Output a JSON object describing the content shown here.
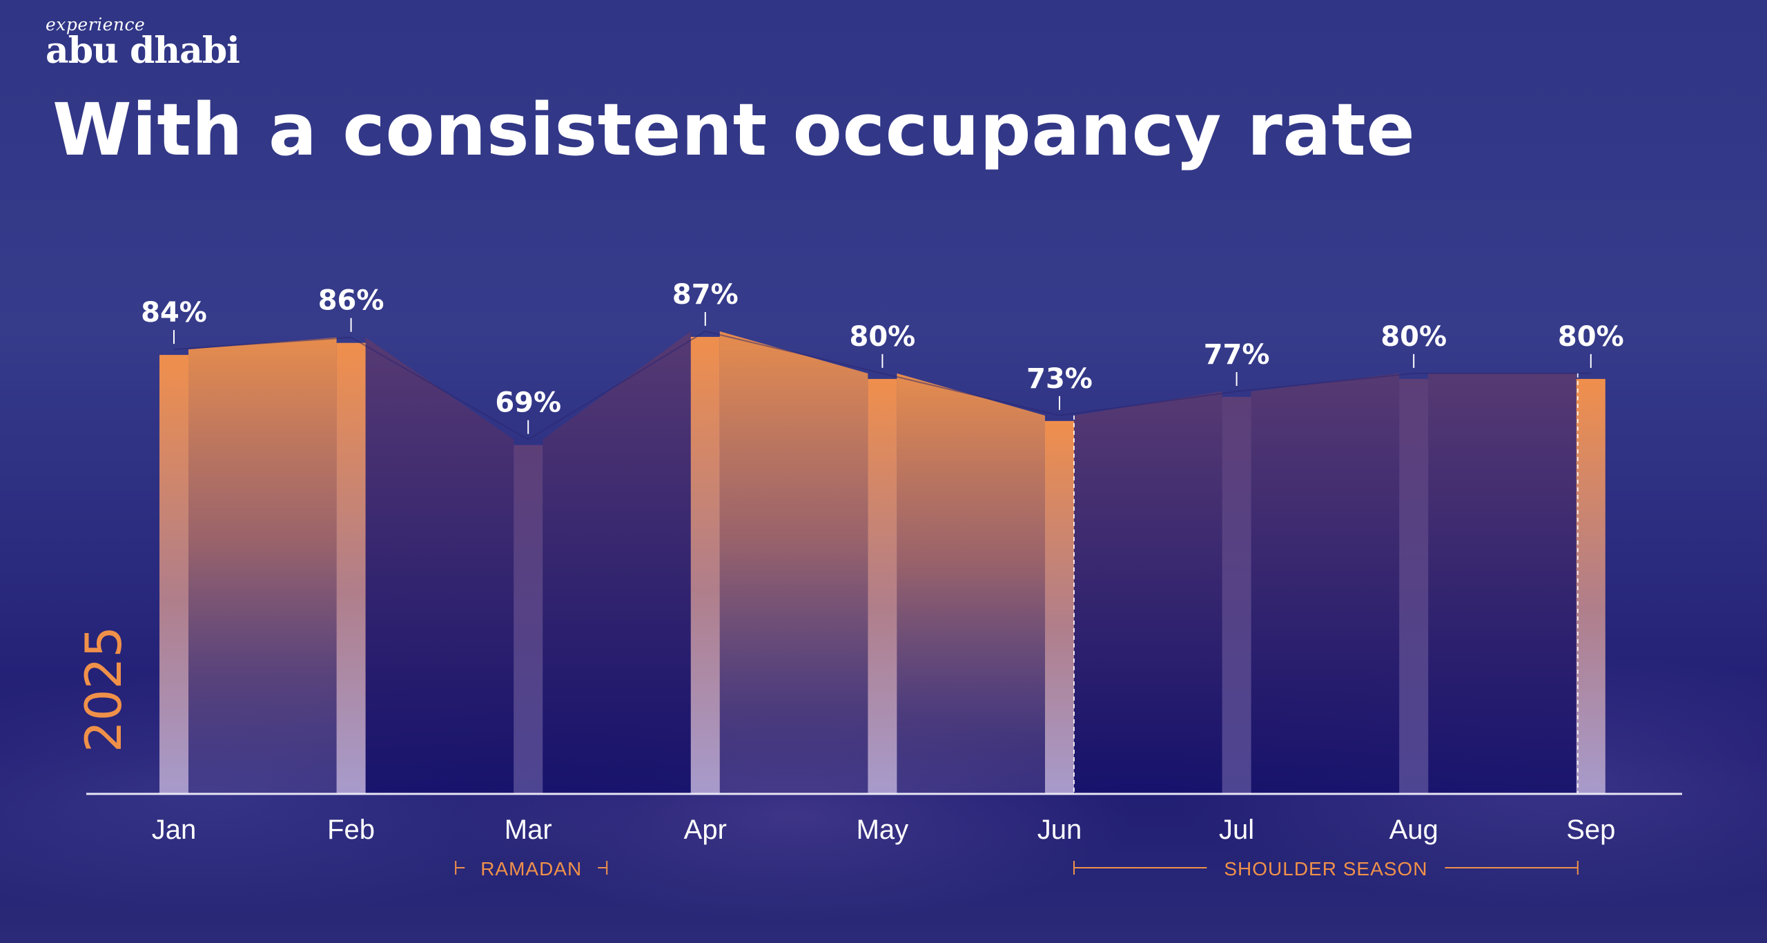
{
  "brand": {
    "line1": "experience",
    "line2": "abu dhabi"
  },
  "title": "With a consistent occupancy rate",
  "colors": {
    "accent": "#f0914a",
    "text": "#ffffff",
    "muted_bar": "#8a6fb8"
  },
  "chart_data": {
    "type": "area",
    "title": "With a consistent occupancy rate",
    "year_label": "2025",
    "categories": [
      "Jan",
      "Feb",
      "Mar",
      "Apr",
      "May",
      "Jun",
      "Jul",
      "Aug",
      "Sep"
    ],
    "series": [
      {
        "name": "Occupancy rate",
        "values": [
          84,
          86,
          69,
          87,
          80,
          73,
          77,
          80,
          80
        ],
        "unit": "%"
      }
    ],
    "value_labels": [
      "84%",
      "86%",
      "69%",
      "87%",
      "80%",
      "73%",
      "77%",
      "80%",
      "80%"
    ],
    "highlighted": [
      true,
      true,
      false,
      true,
      true,
      true,
      false,
      false,
      true
    ],
    "ylim": [
      0,
      100
    ],
    "annotations": [
      {
        "label": "RAMADAN",
        "from": "Mar",
        "to": "Mar"
      },
      {
        "label": "SHOULDER SEASON",
        "from": "Jun",
        "to": "Sep"
      }
    ],
    "xlabel": "",
    "ylabel": ""
  }
}
